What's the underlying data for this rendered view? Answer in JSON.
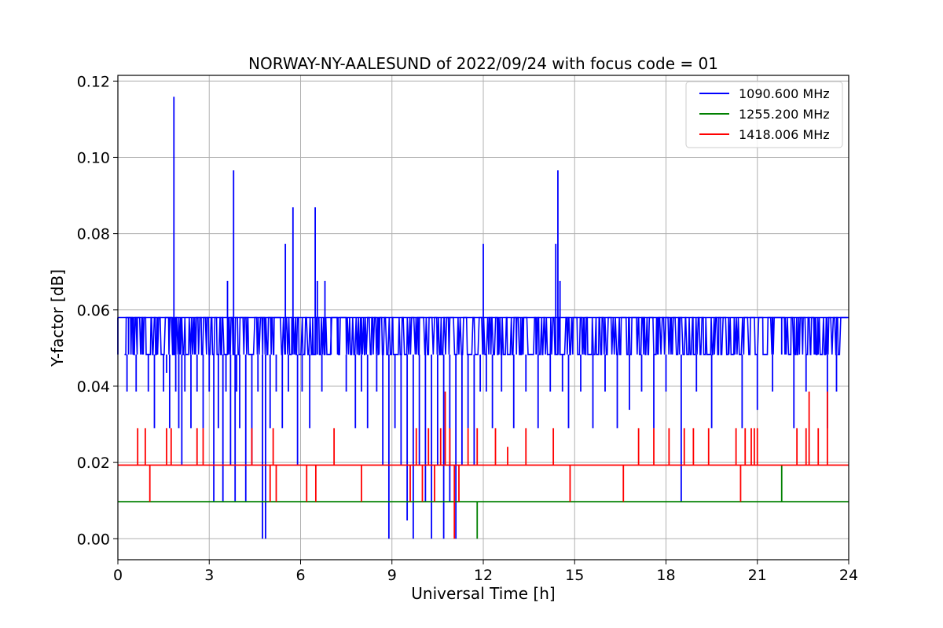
{
  "chart_data": {
    "type": "line",
    "title": "NORWAY-NY-AALESUND of 2022/09/24 with focus code = 01",
    "xlabel": "Universal Time [h]",
    "ylabel": "Y-factor [dB]",
    "xlim": [
      0,
      24
    ],
    "ylim": [
      -0.0055,
      0.1215
    ],
    "x_ticks": [
      0,
      3,
      6,
      9,
      12,
      15,
      18,
      21,
      24
    ],
    "x_tick_labels": [
      "0",
      "3",
      "6",
      "9",
      "12",
      "15",
      "18",
      "21",
      "24"
    ],
    "y_ticks": [
      0.0,
      0.02,
      0.04,
      0.06,
      0.08,
      0.1,
      0.12
    ],
    "y_tick_labels": [
      "0.00",
      "0.02",
      "0.04",
      "0.06",
      "0.08",
      "0.10",
      "0.12"
    ],
    "grid": true,
    "legend_position": "top-right",
    "series": [
      {
        "name": "1090.600 MHz",
        "color": "#0000ff",
        "baseline_levels": [
          0.0483,
          0.058
        ],
        "x": [
          0.0,
          0.25,
          0.3,
          0.35,
          0.4,
          0.5,
          0.6,
          0.8,
          1.0,
          1.2,
          1.3,
          1.5,
          1.6,
          1.7,
          1.8,
          1.84,
          1.86,
          1.9,
          2.0,
          2.1,
          2.2,
          2.4,
          2.6,
          2.8,
          3.0,
          3.15,
          3.3,
          3.45,
          3.55,
          3.6,
          3.7,
          3.8,
          3.85,
          3.9,
          4.0,
          4.2,
          4.4,
          4.6,
          4.75,
          4.85,
          5.0,
          5.2,
          5.4,
          5.5,
          5.6,
          5.75,
          5.9,
          6.05,
          6.3,
          6.48,
          6.55,
          6.7,
          6.8,
          7.0,
          7.2,
          7.5,
          7.8,
          8.0,
          8.2,
          8.5,
          8.7,
          8.9,
          9.1,
          9.3,
          9.5,
          9.7,
          9.9,
          10.1,
          10.3,
          10.5,
          10.7,
          10.9,
          11.1,
          11.3,
          11.5,
          11.7,
          11.9,
          12.0,
          12.1,
          12.3,
          12.6,
          13.0,
          13.4,
          13.8,
          14.2,
          14.38,
          14.45,
          14.52,
          14.6,
          14.8,
          15.2,
          15.6,
          16.0,
          16.4,
          16.8,
          17.2,
          17.6,
          18.0,
          18.5,
          19.0,
          19.5,
          20.0,
          20.5,
          21.0,
          21.5,
          21.8,
          22.2,
          22.6,
          23.0,
          23.3,
          23.6,
          24.0
        ],
        "y": [
          0.058,
          0.0483,
          0.0386,
          0.058,
          0.0483,
          0.058,
          0.0386,
          0.058,
          0.0386,
          0.029,
          0.058,
          0.0386,
          0.0435,
          0.029,
          0.058,
          0.1159,
          0.058,
          0.0386,
          0.029,
          0.0193,
          0.0386,
          0.029,
          0.0386,
          0.029,
          0.0386,
          0.0097,
          0.029,
          0.0097,
          0.0386,
          0.0676,
          0.0193,
          0.0966,
          0.0097,
          0.0386,
          0.029,
          0.0097,
          0.0193,
          0.0386,
          0.0,
          0.0,
          0.029,
          0.0386,
          0.029,
          0.0773,
          0.0386,
          0.0869,
          0.0193,
          0.0386,
          0.029,
          0.0869,
          0.0676,
          0.0386,
          0.0676,
          0.058,
          0.0483,
          0.0386,
          0.029,
          0.0386,
          0.029,
          0.0386,
          0.0193,
          0.0,
          0.029,
          0.0193,
          0.0048,
          0.0,
          0.0193,
          0.0097,
          0.0,
          0.0193,
          0.0,
          0.0097,
          0.0,
          0.0193,
          0.029,
          0.0193,
          0.0386,
          0.0773,
          0.0386,
          0.029,
          0.0386,
          0.029,
          0.0386,
          0.029,
          0.0386,
          0.0773,
          0.0966,
          0.0676,
          0.0386,
          0.029,
          0.0386,
          0.029,
          0.0386,
          0.029,
          0.0338,
          0.0386,
          0.029,
          0.0386,
          0.0097,
          0.0386,
          0.029,
          0.0483,
          0.029,
          0.0338,
          0.0386,
          0.058,
          0.029,
          0.0386,
          0.0483,
          0.029,
          0.0386,
          0.0483
        ]
      },
      {
        "name": "1255.200 MHz",
        "color": "#008000",
        "baseline": 0.0097,
        "x": [
          11.8,
          21.8
        ],
        "y": [
          0.0,
          0.0193
        ]
      },
      {
        "name": "1418.006 MHz",
        "color": "#ff0000",
        "baseline": 0.0193,
        "x": [
          0.65,
          0.9,
          1.05,
          1.6,
          1.75,
          2.6,
          2.8,
          4.4,
          5.0,
          5.1,
          5.2,
          6.2,
          6.5,
          7.1,
          8.0,
          9.6,
          9.8,
          10.0,
          10.2,
          10.4,
          10.6,
          10.75,
          10.9,
          11.05,
          11.2,
          11.5,
          11.8,
          12.4,
          12.8,
          13.4,
          14.3,
          14.85,
          16.6,
          17.1,
          17.6,
          18.1,
          18.6,
          18.9,
          19.4,
          20.3,
          20.45,
          20.6,
          20.8,
          20.9,
          21.0,
          22.3,
          22.6,
          22.7,
          23.0,
          23.3
        ],
        "y": [
          0.029,
          0.029,
          0.0097,
          0.029,
          0.029,
          0.029,
          0.029,
          0.029,
          0.0097,
          0.029,
          0.0097,
          0.0097,
          0.0097,
          0.029,
          0.0097,
          0.0097,
          0.029,
          0.0097,
          0.029,
          0.0097,
          0.029,
          0.0386,
          0.029,
          0.0,
          0.0097,
          0.029,
          0.029,
          0.029,
          0.0241,
          0.029,
          0.029,
          0.0097,
          0.0097,
          0.029,
          0.029,
          0.029,
          0.029,
          0.029,
          0.029,
          0.029,
          0.0097,
          0.029,
          0.029,
          0.029,
          0.029,
          0.029,
          0.029,
          0.0386,
          0.029,
          0.0386
        ]
      }
    ]
  }
}
